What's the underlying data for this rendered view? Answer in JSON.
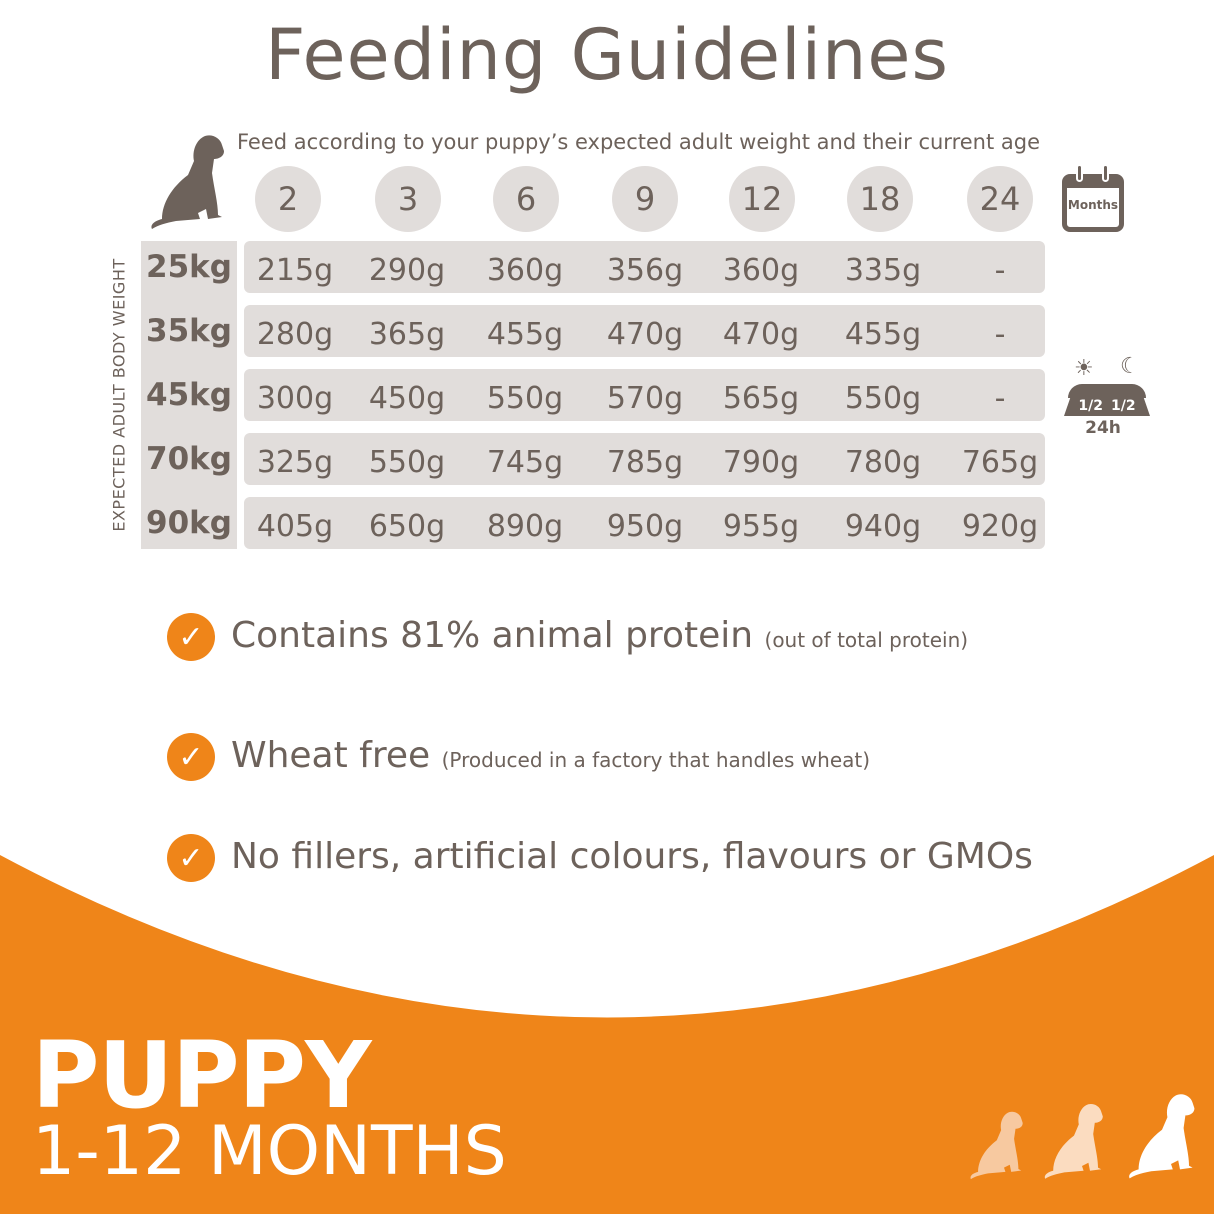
{
  "title": "Feeding Guidelines",
  "subtitle": "Feed according to your puppy’s expected adult weight and their current age",
  "axis_label": "EXPECTED ADULT BODY WEIGHT",
  "months": [
    "2",
    "3",
    "6",
    "9",
    "12",
    "18",
    "24"
  ],
  "calendar_icon_label": "Months",
  "split_icon": {
    "left": "1/2",
    "right": "1/2",
    "caption": "24h"
  },
  "rows": [
    {
      "weight": "25kg",
      "values": [
        "215g",
        "290g",
        "360g",
        "356g",
        "360g",
        "335g",
        "-"
      ]
    },
    {
      "weight": "35kg",
      "values": [
        "280g",
        "365g",
        "455g",
        "470g",
        "470g",
        "455g",
        "-"
      ]
    },
    {
      "weight": "45kg",
      "values": [
        "300g",
        "450g",
        "550g",
        "570g",
        "565g",
        "550g",
        "-"
      ]
    },
    {
      "weight": "70kg",
      "values": [
        "325g",
        "550g",
        "745g",
        "785g",
        "790g",
        "780g",
        "765g"
      ]
    },
    {
      "weight": "90kg",
      "values": [
        "405g",
        "650g",
        "890g",
        "950g",
        "955g",
        "940g",
        "920g"
      ]
    }
  ],
  "benefits": [
    {
      "main": "Contains 81% animal protein",
      "note": "(out of total protein)"
    },
    {
      "main": "Wheat free",
      "note": "(Produced in a factory that handles wheat)"
    },
    {
      "main": "No fillers, artificial colours, flavours or GMOs",
      "note": ""
    }
  ],
  "check_glyph": "✓",
  "banner": {
    "title": "PUPPY",
    "subtitle": "1-12 MONTHS"
  },
  "colors": {
    "brown": "#6d625b",
    "table": "#e1dddb",
    "orange": "#ef8519",
    "puppy_light": "#f7c9a0",
    "puppy_mid": "#fbdcc0"
  }
}
